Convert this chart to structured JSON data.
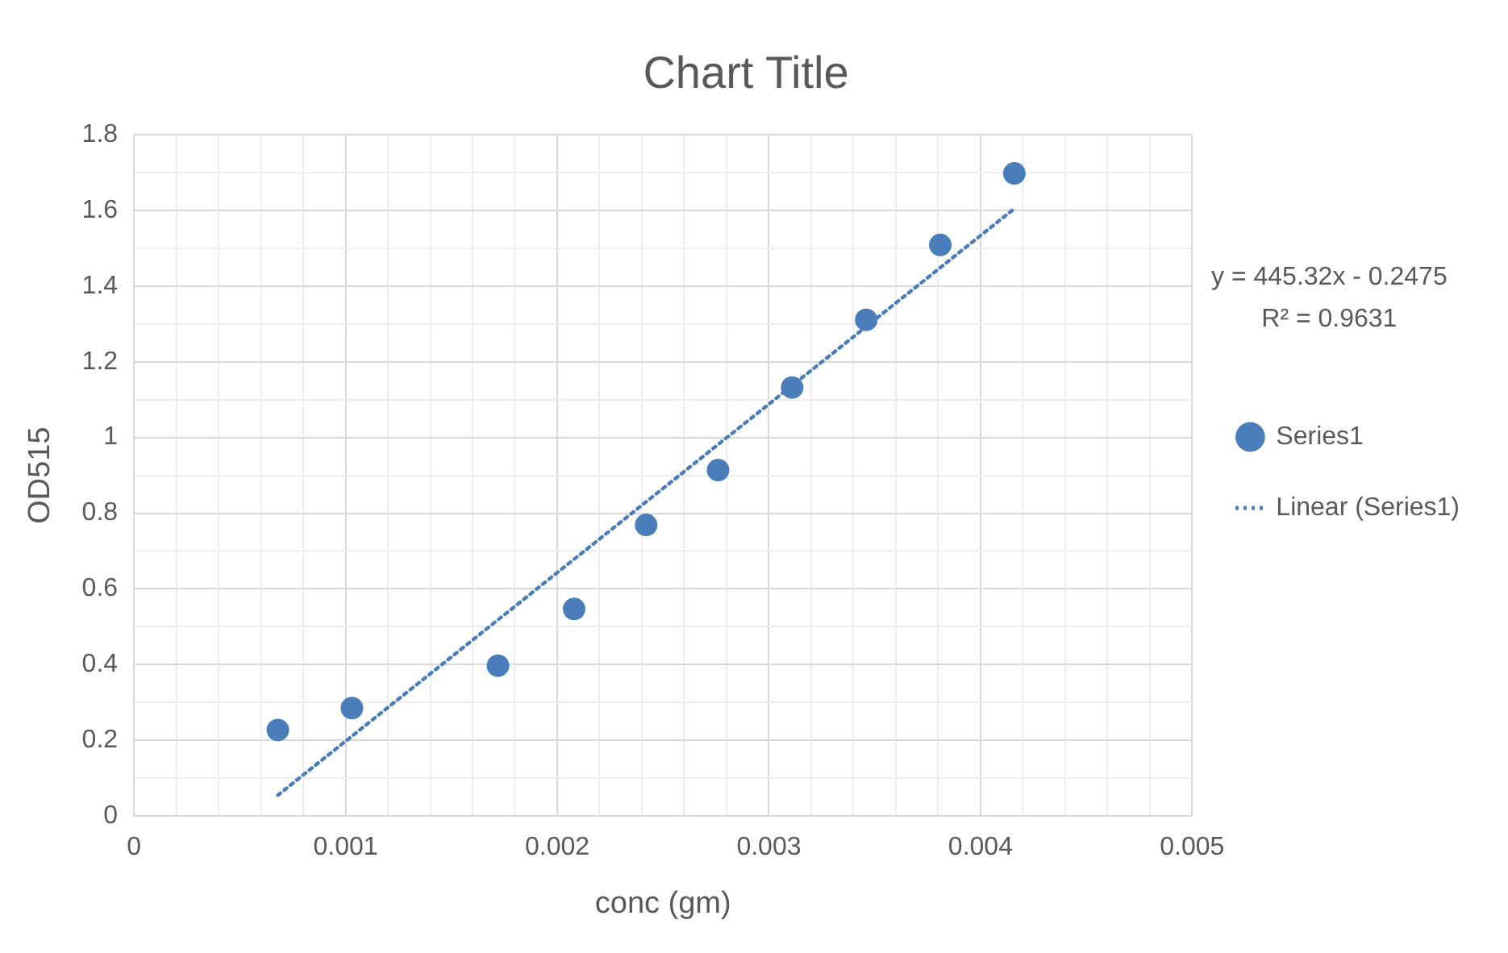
{
  "chart_data": {
    "type": "scatter",
    "title": "Chart Title",
    "xlabel": "conc (gm)",
    "ylabel": "OD515",
    "series": [
      {
        "name": "Series1",
        "color": "#4a7ebb",
        "x": [
          0.00068,
          0.00103,
          0.00172,
          0.00208,
          0.00242,
          0.00276,
          0.00311,
          0.00346,
          0.00381,
          0.00416
        ],
        "values": [
          0.227,
          0.285,
          0.397,
          0.547,
          0.769,
          0.914,
          1.132,
          1.311,
          1.509,
          1.698
        ],
        "marker": "circle"
      },
      {
        "name": "Linear (Series1)",
        "type": "line",
        "color": "#4a7ebb",
        "x": [
          0.00068,
          0.00416
        ],
        "values": [
          0.055,
          1.605
        ],
        "line_style": "dotted",
        "marker": "none"
      }
    ],
    "xlim": [
      0,
      0.005
    ],
    "xticks": [
      0,
      {
        "value": 0.0002,
        "label": null
      },
      {
        "value": 0.0004,
        "label": null
      },
      {
        "value": 0.0006,
        "label": null
      },
      {
        "value": 0.0008,
        "label": null
      },
      0.001,
      {
        "value": 0.0012,
        "label": null
      },
      {
        "value": 0.0014,
        "label": null
      },
      {
        "value": 0.0016,
        "label": null
      },
      {
        "value": 0.0018,
        "label": null
      },
      0.002,
      {
        "value": 0.0022,
        "label": null
      },
      {
        "value": 0.0024,
        "label": null
      },
      {
        "value": 0.0026,
        "label": null
      },
      {
        "value": 0.0028,
        "label": null
      },
      0.003,
      {
        "value": 0.0032,
        "label": null
      },
      {
        "value": 0.0034,
        "label": null
      },
      {
        "value": 0.0036,
        "label": null
      },
      {
        "value": 0.0038,
        "label": null
      },
      0.004,
      {
        "value": 0.0042,
        "label": null
      },
      {
        "value": 0.0044,
        "label": null
      },
      {
        "value": 0.0046,
        "label": null
      },
      {
        "value": 0.0048,
        "label": null
      },
      0.005
    ],
    "ylim": [
      0,
      1.8
    ],
    "yticks": [
      0,
      {
        "value": 0.1,
        "label": null
      },
      0.2,
      {
        "value": 0.3,
        "label": null
      },
      0.4,
      {
        "value": 0.5,
        "label": null
      },
      0.6,
      {
        "value": 0.7,
        "label": null
      },
      0.8,
      {
        "value": 0.9,
        "label": null
      },
      1,
      {
        "value": 1.1,
        "label": null
      },
      1.2,
      {
        "value": 1.3,
        "label": null
      },
      1.4,
      {
        "value": 1.5,
        "label": null
      },
      1.6,
      {
        "value": 1.7,
        "label": null
      },
      1.8
    ],
    "grid": true,
    "legend": "right",
    "annotations": [
      "y = 445.32x - 0.2475",
      "R² = 0.9631"
    ]
  }
}
